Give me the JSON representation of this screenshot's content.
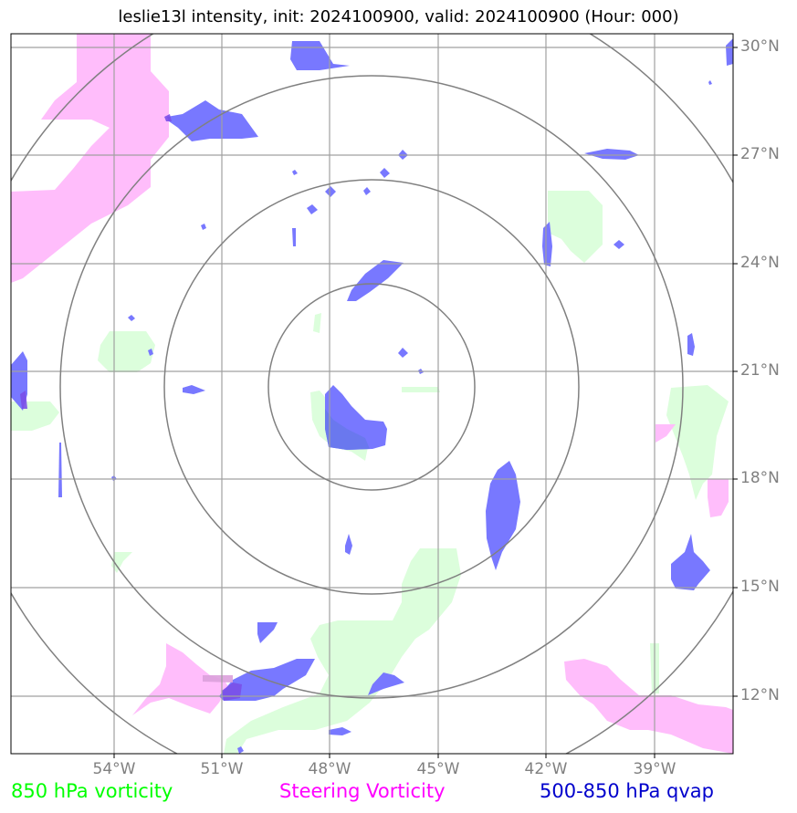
{
  "title": "leslie13l intensity, init: 2024100900, valid: 2024100900 (Hour: 000)",
  "axes": {
    "lat_labels": [
      "30°N",
      "27°N",
      "24°N",
      "21°N",
      "18°N",
      "15°N",
      "12°N"
    ],
    "lon_labels": [
      "54°W",
      "51°W",
      "48°W",
      "45°W",
      "42°W",
      "39°W"
    ],
    "lat_range": [
      10.4,
      30.4
    ],
    "lon_range": [
      -56.9,
      -36.8
    ],
    "grid": true
  },
  "range_rings": {
    "count": 4
  },
  "legend": {
    "vorticity_850": {
      "label": "850 hPa vorticity",
      "color": "#00ff00"
    },
    "steering": {
      "label": "Steering Vorticity",
      "color": "#ff00ff"
    },
    "qvap": {
      "label": "500-850 hPa qvap",
      "color": "#0000cc"
    }
  },
  "colors": {
    "vorticity_fill": "#dcfedc",
    "steering_fill": "#ffbdfb",
    "qvap_fill": "#7878ff",
    "grid": "#a0a0a0",
    "ring": "#808080"
  }
}
